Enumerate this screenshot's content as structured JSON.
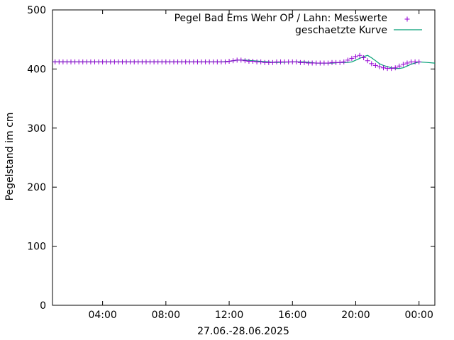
{
  "chart_data": {
    "type": "line",
    "title": "",
    "xlabel": "27.06.-28.06.2025",
    "ylabel": "Pegelstand im cm",
    "xlim": [
      "27.06.2025 00:50",
      "28.06.2025 01:00"
    ],
    "ylim": [
      0,
      500
    ],
    "grid": false,
    "legend_placement": "top-right",
    "x_ticks": [
      {
        "x": "27.06.2025 04:00",
        "label": "04:00"
      },
      {
        "x": "27.06.2025 08:00",
        "label": "08:00"
      },
      {
        "x": "27.06.2025 12:00",
        "label": "12:00"
      },
      {
        "x": "27.06.2025 16:00",
        "label": "16:00"
      },
      {
        "x": "27.06.2025 20:00",
        "label": "20:00"
      },
      {
        "x": "28.06.2025 00:00",
        "label": "00:00"
      }
    ],
    "y_ticks": [
      0,
      100,
      200,
      300,
      400,
      500
    ],
    "series": [
      {
        "name": "Pegel Bad Ems Wehr OP / Lahn: Messwerte",
        "marker": "+",
        "color": "#9400d3",
        "x": [
          "27.06.2025 00:15",
          "27.06.2025 00:30",
          "27.06.2025 00:45",
          "27.06.2025 01:00",
          "27.06.2025 01:15",
          "27.06.2025 01:30",
          "27.06.2025 01:45",
          "27.06.2025 02:00",
          "27.06.2025 02:15",
          "27.06.2025 02:30",
          "27.06.2025 02:45",
          "27.06.2025 03:00",
          "27.06.2025 03:15",
          "27.06.2025 03:30",
          "27.06.2025 03:45",
          "27.06.2025 04:00",
          "27.06.2025 04:15",
          "27.06.2025 04:30",
          "27.06.2025 04:45",
          "27.06.2025 05:00",
          "27.06.2025 05:15",
          "27.06.2025 05:30",
          "27.06.2025 05:45",
          "27.06.2025 06:00",
          "27.06.2025 06:15",
          "27.06.2025 06:30",
          "27.06.2025 06:45",
          "27.06.2025 07:00",
          "27.06.2025 07:15",
          "27.06.2025 07:30",
          "27.06.2025 07:45",
          "27.06.2025 08:00",
          "27.06.2025 08:15",
          "27.06.2025 08:30",
          "27.06.2025 08:45",
          "27.06.2025 09:00",
          "27.06.2025 09:15",
          "27.06.2025 09:30",
          "27.06.2025 09:45",
          "27.06.2025 10:00",
          "27.06.2025 10:15",
          "27.06.2025 10:30",
          "27.06.2025 10:45",
          "27.06.2025 11:00",
          "27.06.2025 11:15",
          "27.06.2025 11:30",
          "27.06.2025 11:45",
          "27.06.2025 12:00",
          "27.06.2025 12:15",
          "27.06.2025 12:30",
          "27.06.2025 12:45",
          "27.06.2025 13:00",
          "27.06.2025 13:15",
          "27.06.2025 13:30",
          "27.06.2025 13:45",
          "27.06.2025 14:00",
          "27.06.2025 14:15",
          "27.06.2025 14:30",
          "27.06.2025 14:45",
          "27.06.2025 15:00",
          "27.06.2025 15:15",
          "27.06.2025 15:30",
          "27.06.2025 15:45",
          "27.06.2025 16:00",
          "27.06.2025 16:15",
          "27.06.2025 16:30",
          "27.06.2025 16:45",
          "27.06.2025 17:00",
          "27.06.2025 17:15",
          "27.06.2025 17:30",
          "27.06.2025 17:45",
          "27.06.2025 18:00",
          "27.06.2025 18:15",
          "27.06.2025 18:30",
          "27.06.2025 18:45",
          "27.06.2025 19:00",
          "27.06.2025 19:15",
          "27.06.2025 19:30",
          "27.06.2025 19:45",
          "27.06.2025 20:00",
          "27.06.2025 20:15",
          "27.06.2025 20:30",
          "27.06.2025 20:45",
          "27.06.2025 21:00",
          "27.06.2025 21:15",
          "27.06.2025 21:30",
          "27.06.2025 21:45",
          "27.06.2025 22:00",
          "27.06.2025 22:15",
          "27.06.2025 22:30",
          "27.06.2025 22:45",
          "27.06.2025 23:00",
          "27.06.2025 23:15",
          "27.06.2025 23:30",
          "27.06.2025 23:45",
          "28.06.2025 00:00"
        ],
        "y": [
          412,
          412,
          412,
          412,
          412,
          412,
          412,
          412,
          412,
          412,
          412,
          412,
          412,
          412,
          412,
          412,
          412,
          412,
          412,
          412,
          412,
          412,
          412,
          412,
          412,
          412,
          412,
          412,
          412,
          412,
          412,
          412,
          412,
          412,
          412,
          412,
          412,
          412,
          412,
          412,
          412,
          412,
          412,
          412,
          412,
          412,
          412,
          413,
          414,
          415,
          415,
          414,
          413,
          413,
          412,
          412,
          411,
          411,
          411,
          412,
          412,
          412,
          412,
          412,
          412,
          411,
          411,
          410,
          410,
          410,
          410,
          410,
          410,
          411,
          411,
          411,
          412,
          415,
          418,
          421,
          423,
          419,
          414,
          409,
          406,
          404,
          402,
          401,
          401,
          402,
          405,
          408,
          410,
          412,
          412,
          412
        ]
      },
      {
        "name": "geschaetzte Kurve",
        "marker": "line",
        "color": "#009e73",
        "x": [
          "27.06.2025 00:15",
          "27.06.2025 02:00",
          "27.06.2025 04:00",
          "27.06.2025 06:00",
          "27.06.2025 08:00",
          "27.06.2025 10:00",
          "27.06.2025 11:30",
          "27.06.2025 12:00",
          "27.06.2025 12:30",
          "27.06.2025 13:00",
          "27.06.2025 13:30",
          "27.06.2025 14:00",
          "27.06.2025 14:30",
          "27.06.2025 15:00",
          "27.06.2025 16:00",
          "27.06.2025 16:45",
          "27.06.2025 17:30",
          "27.06.2025 18:30",
          "27.06.2025 19:00",
          "27.06.2025 19:30",
          "27.06.2025 19:45",
          "27.06.2025 20:00",
          "27.06.2025 20:15",
          "27.06.2025 20:30",
          "27.06.2025 20:45",
          "27.06.2025 21:00",
          "27.06.2025 21:15",
          "27.06.2025 21:30",
          "27.06.2025 21:45",
          "27.06.2025 22:00",
          "27.06.2025 22:15",
          "27.06.2025 22:30",
          "27.06.2025 22:45",
          "27.06.2025 23:00",
          "27.06.2025 23:15",
          "27.06.2025 23:30",
          "28.06.2025 00:00",
          "28.06.2025 00:30",
          "28.06.2025 01:00"
        ],
        "y": [
          412,
          412,
          412,
          412,
          412,
          412,
          412,
          413,
          415,
          415,
          414,
          413,
          412,
          411,
          412,
          412,
          410,
          410,
          411,
          411,
          412,
          415,
          418,
          421,
          423,
          419,
          414,
          409,
          406,
          404,
          402,
          401,
          401,
          402,
          405,
          408,
          412,
          411,
          410
        ]
      }
    ]
  }
}
